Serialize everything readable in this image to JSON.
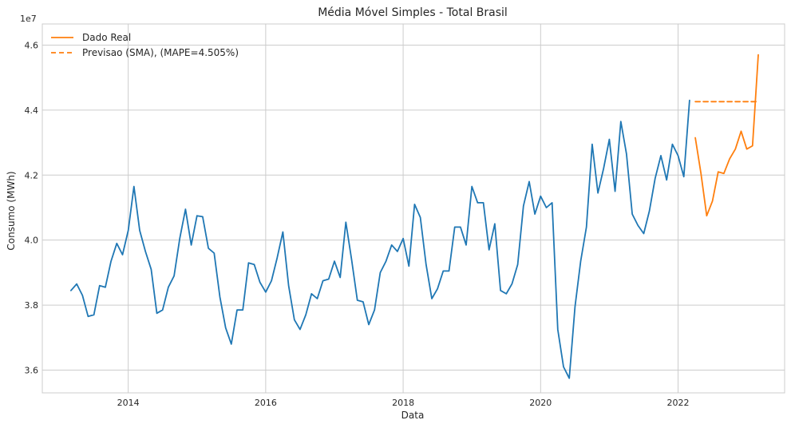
{
  "chart_data": {
    "type": "line",
    "title": "Média Móvel Simples - Total Brasil",
    "xlabel": "Data",
    "ylabel": "Consumo (MWh)",
    "y_offset_label": "1e7",
    "xlim": [
      2012.75,
      2023.55
    ],
    "ylim": [
      35300000,
      46650000
    ],
    "x_ticks": [
      2014,
      2016,
      2018,
      2020,
      2022
    ],
    "x_tick_labels": [
      "2014",
      "2016",
      "2018",
      "2020",
      "2022"
    ],
    "y_ticks": [
      36000000,
      38000000,
      40000000,
      42000000,
      44000000,
      46000000
    ],
    "y_tick_labels": [
      "3.6",
      "3.8",
      "4.0",
      "4.2",
      "4.4",
      "4.6"
    ],
    "grid": true,
    "legend_position": "top-left",
    "series": [
      {
        "name": "",
        "color": "#1f77b4",
        "style": "solid",
        "start": 2013.167,
        "step": 0.08333,
        "values": [
          38450000,
          38650000,
          38300000,
          37650000,
          37700000,
          38600000,
          38550000,
          39350000,
          39900000,
          39550000,
          40300000,
          41650000,
          40300000,
          39650000,
          39100000,
          37750000,
          37850000,
          38550000,
          38900000,
          40050000,
          40950000,
          39850000,
          40750000,
          40720000,
          39750000,
          39600000,
          38250000,
          37300000,
          36800000,
          37850000,
          37850000,
          39300000,
          39250000,
          38700000,
          38400000,
          38750000,
          39450000,
          40250000,
          38600000,
          37550000,
          37250000,
          37700000,
          38350000,
          38200000,
          38750000,
          38800000,
          39350000,
          38850000,
          40550000,
          39400000,
          38150000,
          38100000,
          37400000,
          37850000,
          39000000,
          39350000,
          39850000,
          39650000,
          40050000,
          39200000,
          41100000,
          40700000,
          39250000,
          38200000,
          38500000,
          39050000,
          39050000,
          40400000,
          40400000,
          39850000,
          41650000,
          41150000,
          41150000,
          39700000,
          40500000,
          38450000,
          38350000,
          38650000,
          39250000,
          41050000,
          41800000,
          40800000,
          41350000,
          41000000,
          41150000,
          37250000,
          36100000,
          35750000,
          37950000,
          39350000,
          40400000,
          42950000,
          41450000,
          42200000,
          43100000,
          41500000,
          43650000,
          42650000,
          40800000,
          40450000,
          40200000,
          40900000,
          41900000,
          42600000,
          41850000,
          42950000,
          42600000,
          41950000,
          44300000
        ]
      },
      {
        "name": "Dado Real",
        "color": "#ff7f0e",
        "style": "solid",
        "start": 2022.25,
        "step": 0.08333,
        "values": [
          43150000,
          42050000,
          40750000,
          41200000,
          42100000,
          42050000,
          42500000,
          42800000,
          43350000,
          42800000,
          42900000,
          45700000
        ]
      },
      {
        "name": "Previsao (SMA), (MAPE=4.505%)",
        "color": "#ff7f0e",
        "style": "dashed",
        "start": 2022.25,
        "step": 0.08333,
        "values": [
          44260000,
          44260000,
          44260000,
          44260000,
          44260000,
          44260000,
          44260000,
          44260000,
          44260000,
          44260000,
          44260000,
          44260000
        ]
      }
    ]
  }
}
